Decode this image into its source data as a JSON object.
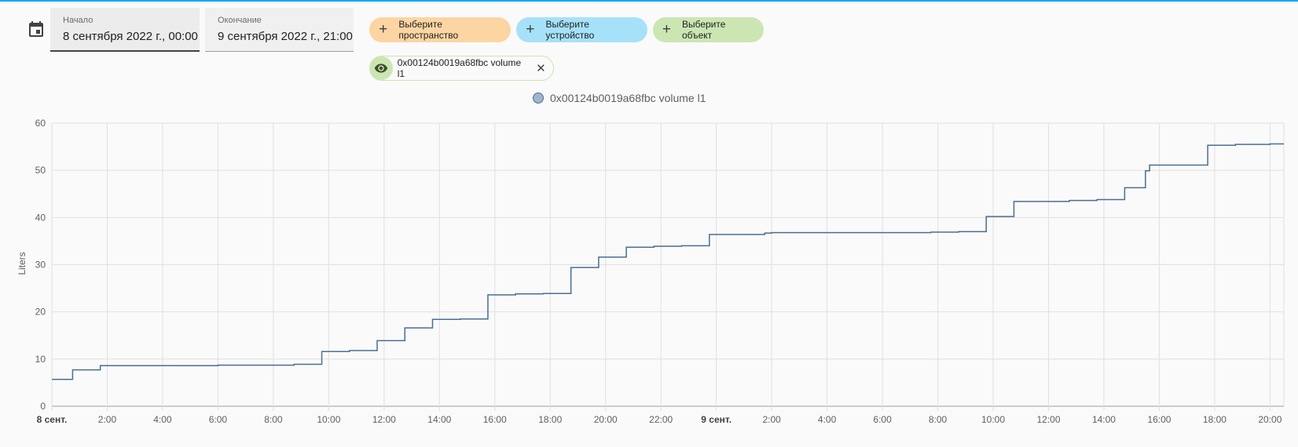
{
  "date_range": {
    "start": {
      "label": "Начало",
      "value": "8 сентября 2022 г., 00:00"
    },
    "end": {
      "label": "Окончание",
      "value": "9 сентября 2022 г., 21:00"
    }
  },
  "target_picker": {
    "area_label": "Выберите пространство",
    "device_label": "Выберите устройство",
    "entity_label": "Выберите объект",
    "area_color": "#fdd5a2",
    "device_color": "#a6e1fa",
    "entity_color": "#cbe6b3"
  },
  "selected_entities": [
    {
      "label": "0x00124b0019a68fbc volume l1"
    }
  ],
  "icons": {
    "calendar": "calendar-icon",
    "plus": "plus-icon",
    "eye": "eye-icon",
    "close": "close-icon"
  },
  "chart_data": {
    "type": "line",
    "step": true,
    "ylabel": "Liters",
    "ylim": [
      0,
      60
    ],
    "yticks": [
      0,
      10,
      20,
      30,
      40,
      50,
      60
    ],
    "xlim_hours": [
      0,
      44.5
    ],
    "xticks": [
      {
        "h": 0,
        "label": "8 сент.",
        "bold": true
      },
      {
        "h": 2,
        "label": "2:00"
      },
      {
        "h": 4,
        "label": "4:00"
      },
      {
        "h": 6,
        "label": "6:00"
      },
      {
        "h": 8,
        "label": "8:00"
      },
      {
        "h": 10,
        "label": "10:00"
      },
      {
        "h": 12,
        "label": "12:00"
      },
      {
        "h": 14,
        "label": "14:00"
      },
      {
        "h": 16,
        "label": "16:00"
      },
      {
        "h": 18,
        "label": "18:00"
      },
      {
        "h": 20,
        "label": "20:00"
      },
      {
        "h": 22,
        "label": "22:00"
      },
      {
        "h": 24,
        "label": "9 сент.",
        "bold": true
      },
      {
        "h": 26,
        "label": "2:00"
      },
      {
        "h": 28,
        "label": "4:00"
      },
      {
        "h": 30,
        "label": "6:00"
      },
      {
        "h": 32,
        "label": "8:00"
      },
      {
        "h": 34,
        "label": "10:00"
      },
      {
        "h": 36,
        "label": "12:00"
      },
      {
        "h": 38,
        "label": "14:00"
      },
      {
        "h": 40,
        "label": "16:00"
      },
      {
        "h": 42,
        "label": "18:00"
      },
      {
        "h": 44,
        "label": "20:00"
      }
    ],
    "grid": true,
    "legend_position": "top-center",
    "series": [
      {
        "name": "0x00124b0019a68fbc volume l1",
        "color": "#4a6e94",
        "points": [
          [
            0,
            5.7
          ],
          [
            0.75,
            7.7
          ],
          [
            1.75,
            8.6
          ],
          [
            6,
            8.7
          ],
          [
            8.75,
            8.9
          ],
          [
            9.75,
            11.6
          ],
          [
            10.75,
            11.8
          ],
          [
            11.75,
            13.9
          ],
          [
            12.75,
            16.6
          ],
          [
            13.75,
            18.4
          ],
          [
            14.75,
            18.5
          ],
          [
            15.75,
            23.6
          ],
          [
            16.75,
            23.8
          ],
          [
            17.75,
            23.9
          ],
          [
            18.75,
            29.4
          ],
          [
            19.75,
            31.6
          ],
          [
            20.75,
            33.7
          ],
          [
            21.75,
            33.9
          ],
          [
            22.75,
            34.0
          ],
          [
            23.75,
            36.4
          ],
          [
            25.75,
            36.7
          ],
          [
            26,
            36.8
          ],
          [
            30,
            36.8
          ],
          [
            31.75,
            36.9
          ],
          [
            32.75,
            37.0
          ],
          [
            33.75,
            40.2
          ],
          [
            34.75,
            43.4
          ],
          [
            36.75,
            43.6
          ],
          [
            37.75,
            43.8
          ],
          [
            38.75,
            46.3
          ],
          [
            39.5,
            49.9
          ],
          [
            39.65,
            51.1
          ],
          [
            41.75,
            55.3
          ],
          [
            42.75,
            55.5
          ],
          [
            44,
            55.6
          ],
          [
            44.5,
            55.6
          ]
        ]
      }
    ]
  }
}
